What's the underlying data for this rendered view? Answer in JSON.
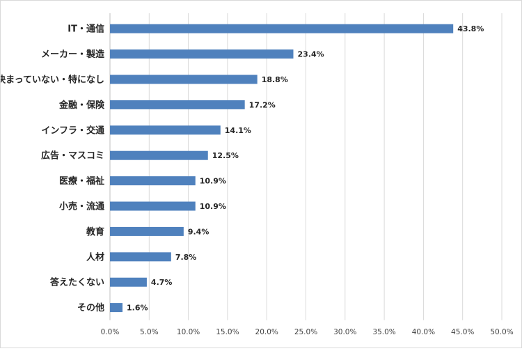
{
  "chart_data": {
    "type": "bar",
    "orientation": "horizontal",
    "categories": [
      "IT・通信",
      "メーカー・製造",
      "決まっていない・特になし",
      "金融・保険",
      "インフラ・交通",
      "広告・マスコミ",
      "医療・福祉",
      "小売・流通",
      "教育",
      "人材",
      "答えたくない",
      "その他"
    ],
    "values": [
      43.8,
      23.4,
      18.8,
      17.2,
      14.1,
      12.5,
      10.9,
      10.9,
      9.4,
      7.8,
      4.7,
      1.6
    ],
    "value_labels": [
      "43.8%",
      "23.4%",
      "18.8%",
      "17.2%",
      "14.1%",
      "12.5%",
      "10.9%",
      "10.9%",
      "9.4%",
      "7.8%",
      "4.7%",
      "1.6%"
    ],
    "title": "",
    "xlabel": "",
    "ylabel": "",
    "xlim": [
      0,
      50
    ],
    "x_ticks": [
      0,
      5,
      10,
      15,
      20,
      25,
      30,
      35,
      40,
      45,
      50
    ],
    "x_tick_labels": [
      "0.0%",
      "5.0%",
      "10.0%",
      "15.0%",
      "20.0%",
      "25.0%",
      "30.0%",
      "35.0%",
      "40.0%",
      "45.0%",
      "50.0%"
    ],
    "grid": "vertical",
    "legend": "none",
    "colors": {
      "bar": "#4f81bd",
      "grid": "#d9d9d9",
      "text": "#262626",
      "axis": "#bfbfbf"
    }
  }
}
